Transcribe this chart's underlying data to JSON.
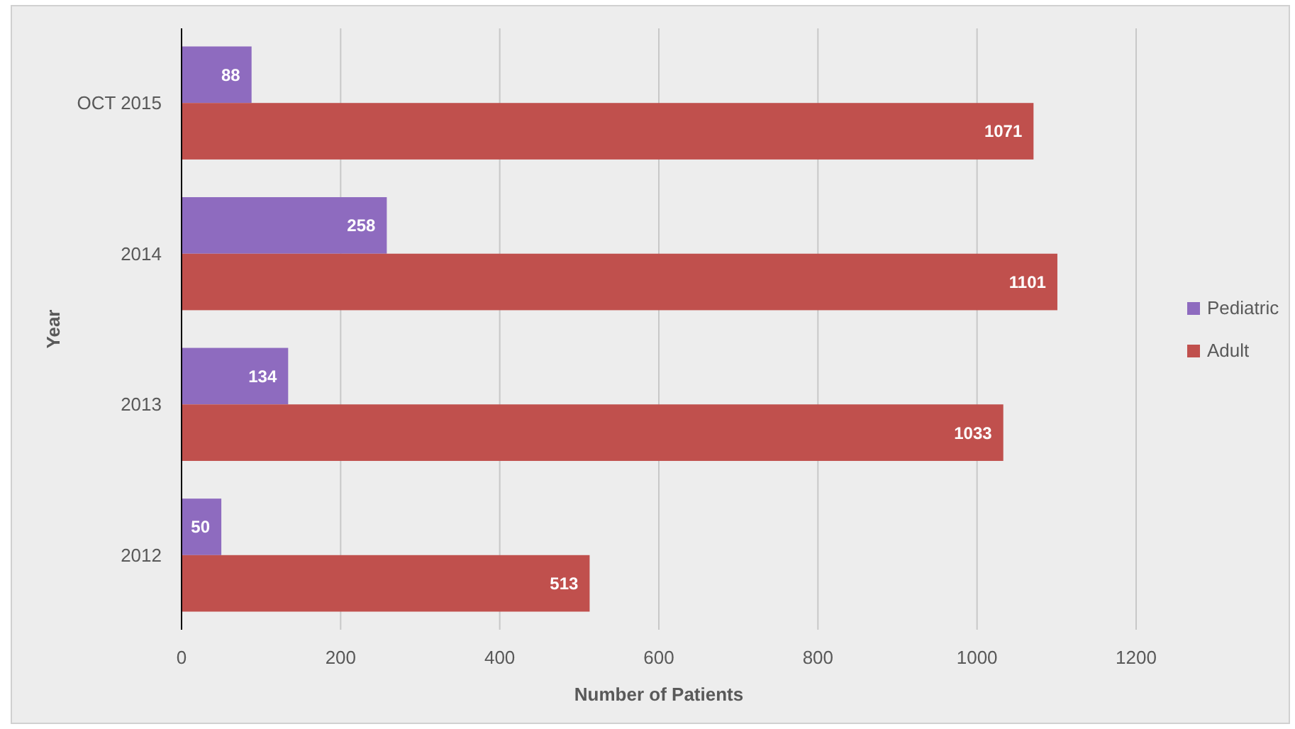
{
  "chart_data": {
    "type": "bar",
    "orientation": "horizontal",
    "categories": [
      "OCT 2015",
      "2014",
      "2013",
      "2012"
    ],
    "series": [
      {
        "name": "Pediatric",
        "color": "#8e6bbf",
        "values": [
          88,
          258,
          134,
          50
        ]
      },
      {
        "name": "Adult",
        "color": "#c0504d",
        "values": [
          1071,
          1101,
          1033,
          513
        ]
      }
    ],
    "xlim": [
      0,
      1200
    ],
    "xticks": [
      0,
      200,
      400,
      600,
      800,
      1000,
      1200
    ],
    "xlabel": "Number of Patients",
    "ylabel": "Year",
    "grid": "x",
    "legend": "right",
    "data_labels": true
  }
}
